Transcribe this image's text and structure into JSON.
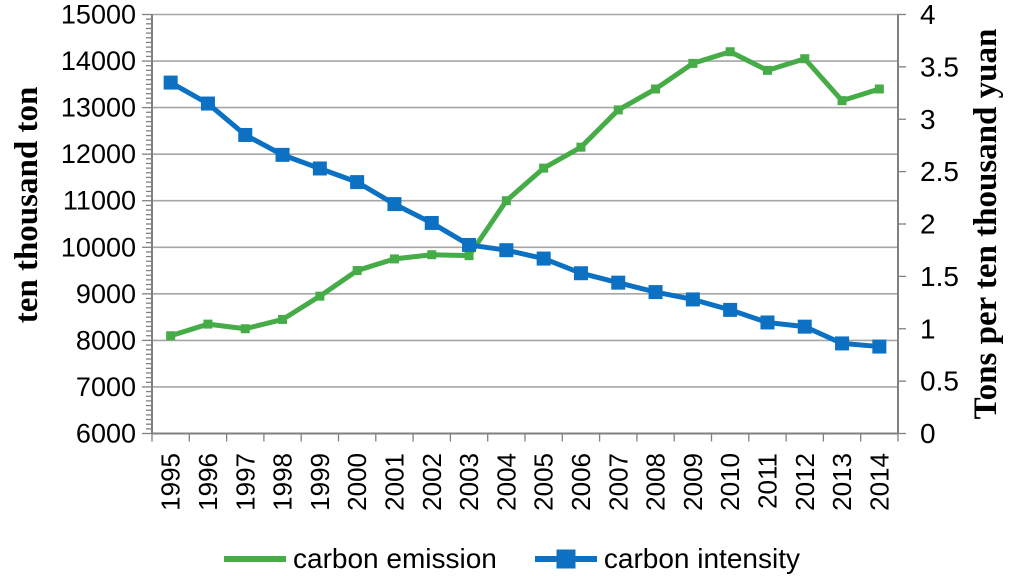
{
  "chart_data": {
    "type": "line",
    "categories": [
      "1995",
      "1996",
      "1997",
      "1998",
      "1999",
      "2000",
      "2001",
      "2002",
      "2003",
      "2004",
      "2005",
      "2006",
      "2007",
      "2008",
      "2009",
      "2010",
      "2011",
      "2012",
      "2013",
      "2014"
    ],
    "series": [
      {
        "name": "carbon emission",
        "axis": "left",
        "color": "#46AC48",
        "marker": "square-small",
        "values": [
          8100,
          8350,
          8250,
          8450,
          8950,
          9500,
          9750,
          9840,
          9820,
          11000,
          11700,
          12150,
          12950,
          13400,
          13950,
          14200,
          13800,
          14050,
          13150,
          13400
        ]
      },
      {
        "name": "carbon intensity",
        "axis": "right",
        "color": "#0C71C3",
        "marker": "square",
        "values": [
          3.35,
          3.15,
          2.85,
          2.66,
          2.53,
          2.4,
          2.19,
          2.01,
          1.8,
          1.75,
          1.67,
          1.53,
          1.44,
          1.35,
          1.28,
          1.18,
          1.06,
          1.02,
          0.86,
          0.83
        ]
      }
    ],
    "left_axis": {
      "title": "ten thousand ton",
      "min": 6000,
      "max": 15000,
      "step": 1000,
      "minor_step": 100,
      "tick_labels": [
        "15000",
        "14000",
        "13000",
        "12000",
        "11000",
        "10000",
        "9000",
        "8000",
        "7000",
        "6000"
      ]
    },
    "right_axis": {
      "title": "Tons per ten thousand yuan",
      "min": 0,
      "max": 4,
      "step": 0.5,
      "tick_labels": [
        "4",
        "3.5",
        "3",
        "2.5",
        "2",
        "1.5",
        "1",
        "0.5",
        "0"
      ]
    },
    "legend": {
      "position": "bottom"
    },
    "grid": true,
    "colors": {
      "gridline": "#A6A6A6",
      "axis_line": "#808080",
      "text": "#000000"
    }
  }
}
